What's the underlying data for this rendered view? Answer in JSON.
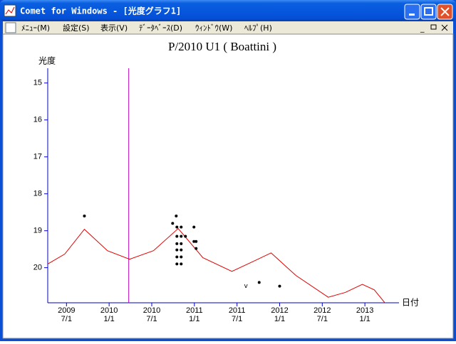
{
  "window": {
    "title": "Comet for Windows - [光度グラフ1]"
  },
  "menu": [
    "ﾒﾆｭｰ(M)",
    "設定(S)",
    "表示(V)",
    "ﾃﾞｰﾀﾍﾞｰｽ(D)",
    "ｳｨﾝﾄﾞｳ(W)",
    "ﾍﾙﾌﾟ(H)"
  ],
  "chart_data": {
    "type": "scatter",
    "title": "P/2010 U1 ( Boattini )",
    "y_label": "光度",
    "x_label": "日付",
    "xlim": [
      2009.28,
      2013.4
    ],
    "ylim": [
      14.6,
      20.95
    ],
    "y_inverted": true,
    "axis_color": "#0000c0",
    "xticks": [
      {
        "value": 2009.5,
        "label": [
          "2009",
          "7/1"
        ]
      },
      {
        "value": 2010.0,
        "label": [
          "2010",
          "1/1"
        ]
      },
      {
        "value": 2010.5,
        "label": [
          "2010",
          "7/1"
        ]
      },
      {
        "value": 2011.0,
        "label": [
          "2011",
          "1/1"
        ]
      },
      {
        "value": 2011.5,
        "label": [
          "2011",
          "7/1"
        ]
      },
      {
        "value": 2012.0,
        "label": [
          "2012",
          "1/1"
        ]
      },
      {
        "value": 2012.5,
        "label": [
          "2012",
          "7/1"
        ]
      },
      {
        "value": 2013.0,
        "label": [
          "2013",
          "1/1"
        ]
      }
    ],
    "yticks": [
      15,
      16,
      17,
      18,
      19,
      20
    ],
    "vline": {
      "x": 2010.23,
      "color": "#c000c0"
    },
    "series": [
      {
        "style": "line",
        "color": "#e00000",
        "x": [
          2009.28,
          2009.48,
          2009.71,
          2009.98,
          2010.24,
          2010.52,
          2010.81,
          2011.1,
          2011.44,
          2011.69,
          2011.9,
          2012.19,
          2012.57,
          2012.77,
          2012.97,
          2013.11,
          2013.23
        ],
        "values": [
          19.9,
          19.63,
          18.96,
          19.54,
          19.77,
          19.54,
          18.94,
          19.73,
          20.1,
          19.83,
          19.6,
          20.21,
          20.8,
          20.67,
          20.45,
          20.6,
          20.94
        ]
      },
      {
        "style": "dot",
        "color": "#000000",
        "x": [
          2009.71,
          2010.745,
          2010.787,
          2010.795,
          2010.795,
          2010.795,
          2010.795,
          2010.795,
          2010.795,
          2010.845,
          2010.845,
          2010.845,
          2010.845,
          2010.845,
          2010.845,
          2010.895,
          2010.995,
          2010.995,
          2011.02,
          2011.02,
          2011.76,
          2012.0
        ],
        "values": [
          18.6,
          18.8,
          18.6,
          18.9,
          19.15,
          19.35,
          19.52,
          19.71,
          19.9,
          18.9,
          19.15,
          19.35,
          19.52,
          19.71,
          19.9,
          19.15,
          18.9,
          19.29,
          19.29,
          19.48,
          20.4,
          20.5
        ]
      },
      {
        "style": "text",
        "marker_text": "v",
        "color": "#000000",
        "x": [
          2011.605
        ],
        "values": [
          20.5
        ]
      }
    ]
  }
}
